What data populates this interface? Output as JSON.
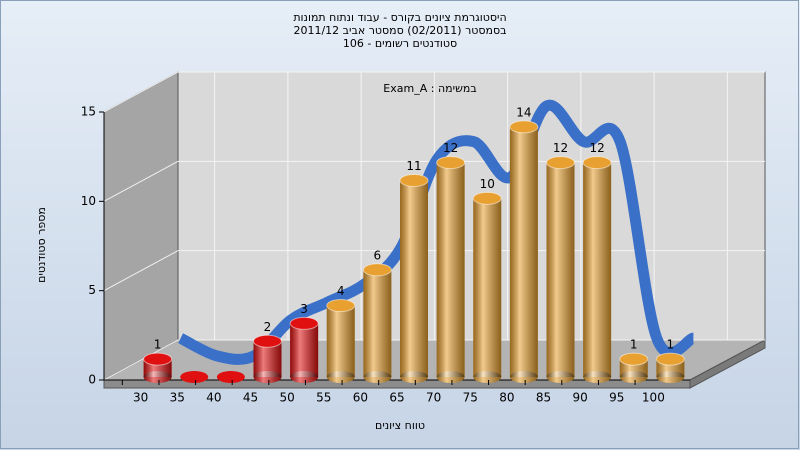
{
  "chart_data": {
    "type": "bar3d",
    "title": [
      "היסטוגרמת ציונים בקורס - עבוד ונתוח תמונות",
      "בסמסטר (02/2011) סמסטר אביב 2011/12",
      "סטודנטים רשומים - 106"
    ],
    "subtitle": "במשימה : Exam_A",
    "x_label": "טווח ציונים",
    "y_label": "מספר סטודנטים",
    "categories": [
      "30",
      "35",
      "40",
      "45",
      "50",
      "55",
      "60",
      "65",
      "70",
      "75",
      "80",
      "85",
      "90",
      "95",
      "100"
    ],
    "values": [
      1,
      0,
      0,
      2,
      3,
      4,
      6,
      11,
      12,
      10,
      14,
      12,
      12,
      1,
      1
    ],
    "bar_colors": [
      "#e01010",
      "#e01010",
      "#e01010",
      "#e01010",
      "#e01010",
      "#e8a030",
      "#e8a030",
      "#e8a030",
      "#e8a030",
      "#e8a030",
      "#e8a030",
      "#e8a030",
      "#e8a030",
      "#e8a030",
      "#e8a030"
    ],
    "trend_color": "#3a70c8",
    "ylim": [
      0,
      15
    ],
    "yticks": [
      0,
      5,
      10,
      15
    ],
    "grid": true
  }
}
